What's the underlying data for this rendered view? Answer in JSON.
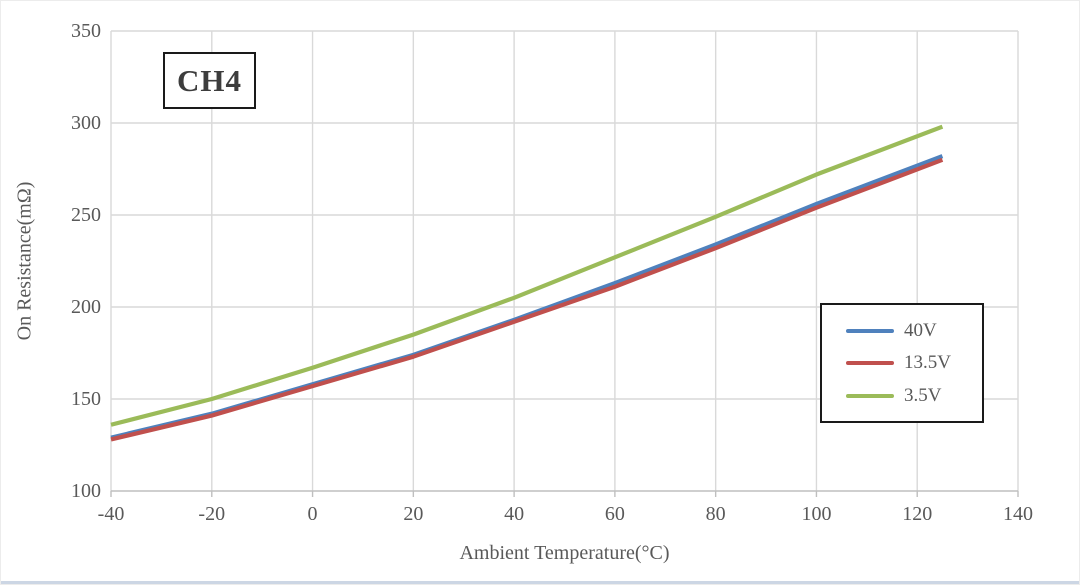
{
  "chart_data": {
    "type": "line",
    "title": "CH4",
    "xlabel": "Ambient Temperature(°C)",
    "ylabel": "On Resistance(mΩ)",
    "x": [
      -40,
      -20,
      0,
      20,
      40,
      60,
      80,
      100,
      125
    ],
    "series": [
      {
        "name": "40V",
        "color": "#4F81BD",
        "values": [
          129,
          142,
          158,
          174,
          193,
          213,
          234,
          256,
          282
        ]
      },
      {
        "name": "13.5V",
        "color": "#C0504D",
        "values": [
          128,
          141,
          157,
          173,
          192,
          211,
          232,
          254,
          280
        ]
      },
      {
        "name": "3.5V",
        "color": "#9BBB59",
        "values": [
          136,
          150,
          167,
          185,
          205,
          227,
          249,
          272,
          298
        ]
      }
    ],
    "xlim": [
      -40,
      140
    ],
    "ylim": [
      100,
      350
    ],
    "x_ticks": [
      -40,
      -20,
      0,
      20,
      40,
      60,
      80,
      100,
      120,
      140
    ],
    "y_ticks": [
      350,
      300,
      250,
      200,
      150,
      100
    ],
    "grid": true,
    "legend_position": "middle-right"
  },
  "styles": {
    "gridline_color": "#d9d9d9",
    "axis_line_color": "#bfbfbf",
    "text_color": "#595959",
    "box_border_color": "#1a1a1a"
  }
}
